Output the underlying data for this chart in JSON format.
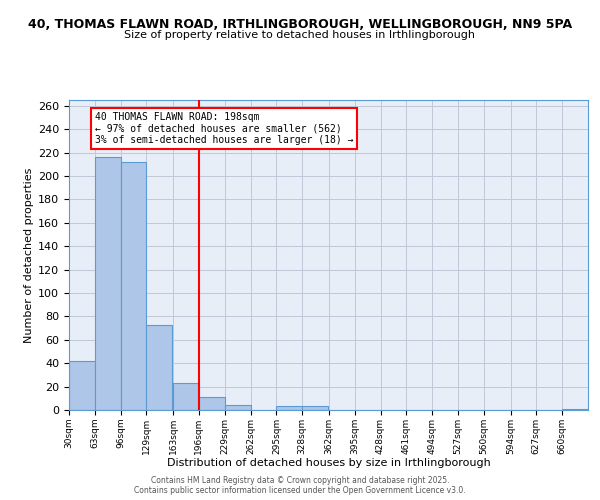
{
  "title_line1": "40, THOMAS FLAWN ROAD, IRTHLINGBOROUGH, WELLINGBOROUGH, NN9 5PA",
  "title_line2": "Size of property relative to detached houses in Irthlingborough",
  "xlabel": "Distribution of detached houses by size in Irthlingborough",
  "ylabel": "Number of detached properties",
  "bins": [
    30,
    63,
    96,
    129,
    163,
    196,
    229,
    262,
    295,
    328,
    362,
    395,
    428,
    461,
    494,
    527,
    560,
    594,
    627,
    660,
    693
  ],
  "counts": [
    42,
    216,
    212,
    73,
    23,
    11,
    4,
    0,
    3,
    3,
    0,
    0,
    0,
    0,
    0,
    0,
    0,
    0,
    0,
    1
  ],
  "bar_color": "#aec6e8",
  "bar_edge_color": "#5b9bd5",
  "bar_edge_width": 0.8,
  "grid_color": "#c0c8d8",
  "background_color": "#e8eef8",
  "red_line_x": 196,
  "annotation_box_text": "40 THOMAS FLAWN ROAD: 198sqm\n← 97% of detached houses are smaller (562)\n3% of semi-detached houses are larger (18) →",
  "ylim": [
    0,
    265
  ],
  "yticks": [
    0,
    20,
    40,
    60,
    80,
    100,
    120,
    140,
    160,
    180,
    200,
    220,
    240,
    260
  ],
  "footnote1": "Contains HM Land Registry data © Crown copyright and database right 2025.",
  "footnote2": "Contains public sector information licensed under the Open Government Licence v3.0."
}
